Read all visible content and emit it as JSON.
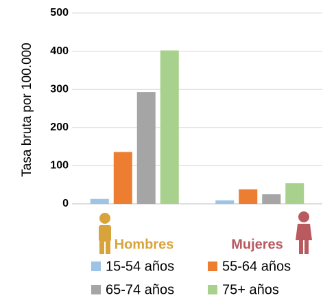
{
  "chart_data": {
    "type": "bar",
    "y_label": "Tasa bruta por 100.000",
    "categories": [
      "Hombres",
      "Mujeres"
    ],
    "category_colors": [
      "#d9a33b",
      "#b85a60"
    ],
    "series": [
      {
        "name": "15-54 años",
        "color": "#9dc3e6",
        "values": [
          13,
          9
        ]
      },
      {
        "name": "55-64 años",
        "color": "#ed7d31",
        "values": [
          136,
          38
        ]
      },
      {
        "name": "65-74 años",
        "color": "#a5a5a5",
        "values": [
          293,
          25
        ]
      },
      {
        "name": "75+ años",
        "color": "#a9d18e",
        "values": [
          402,
          54
        ]
      }
    ],
    "ylim": [
      0,
      500
    ],
    "yticks": [
      0,
      100,
      200,
      300,
      400,
      500
    ],
    "grid": true,
    "legend": "bottom"
  }
}
